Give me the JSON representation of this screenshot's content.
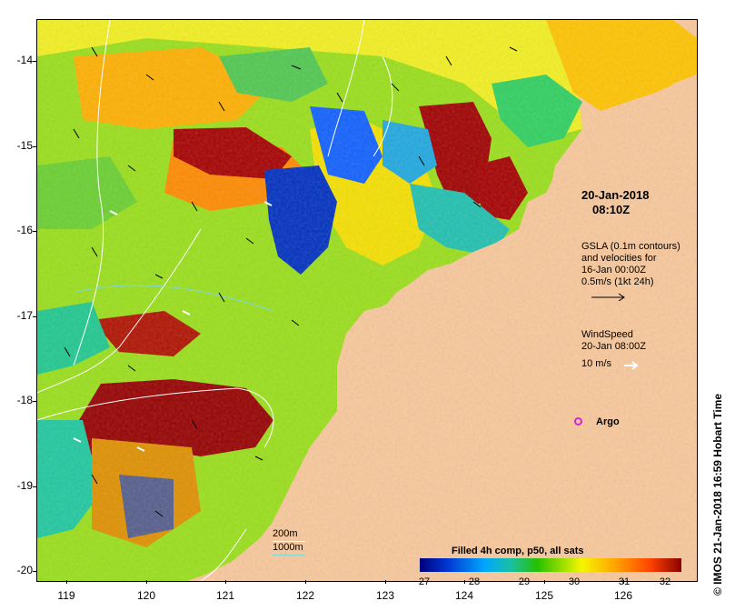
{
  "map": {
    "y_ticks": [
      "-14",
      "-15",
      "-16",
      "-17",
      "-18",
      "-19",
      "-20"
    ],
    "x_ticks": [
      "119",
      "120",
      "121",
      "122",
      "123",
      "124",
      "125",
      "126"
    ],
    "snapshot_time": [
      "20-Jan-2018",
      "08:10Z"
    ],
    "gsla_note": [
      "GSLA (0.1m contours)",
      "and velocities for",
      "16-Jan 00:00Z",
      "0.5m/s (1kt 24h)"
    ],
    "wind_note": [
      "WindSpeed",
      "20-Jan 08:00Z",
      "10 m/s"
    ],
    "argo_label": "Argo",
    "depth_legend": [
      "200m",
      "1000m"
    ],
    "colors": {
      "land": "#f9c89b",
      "argo": "#d226d8",
      "depth_200": "#ffffff",
      "depth_1000": "#7fd8d8"
    }
  },
  "colorbar": {
    "title": "Filled 4h comp, p50, all sats",
    "ticks": [
      "27",
      "28",
      "29",
      "30",
      "31",
      "32"
    ]
  },
  "side_text": "©  IMOS 21-Jan-2018 16:59 Hobart Time"
}
